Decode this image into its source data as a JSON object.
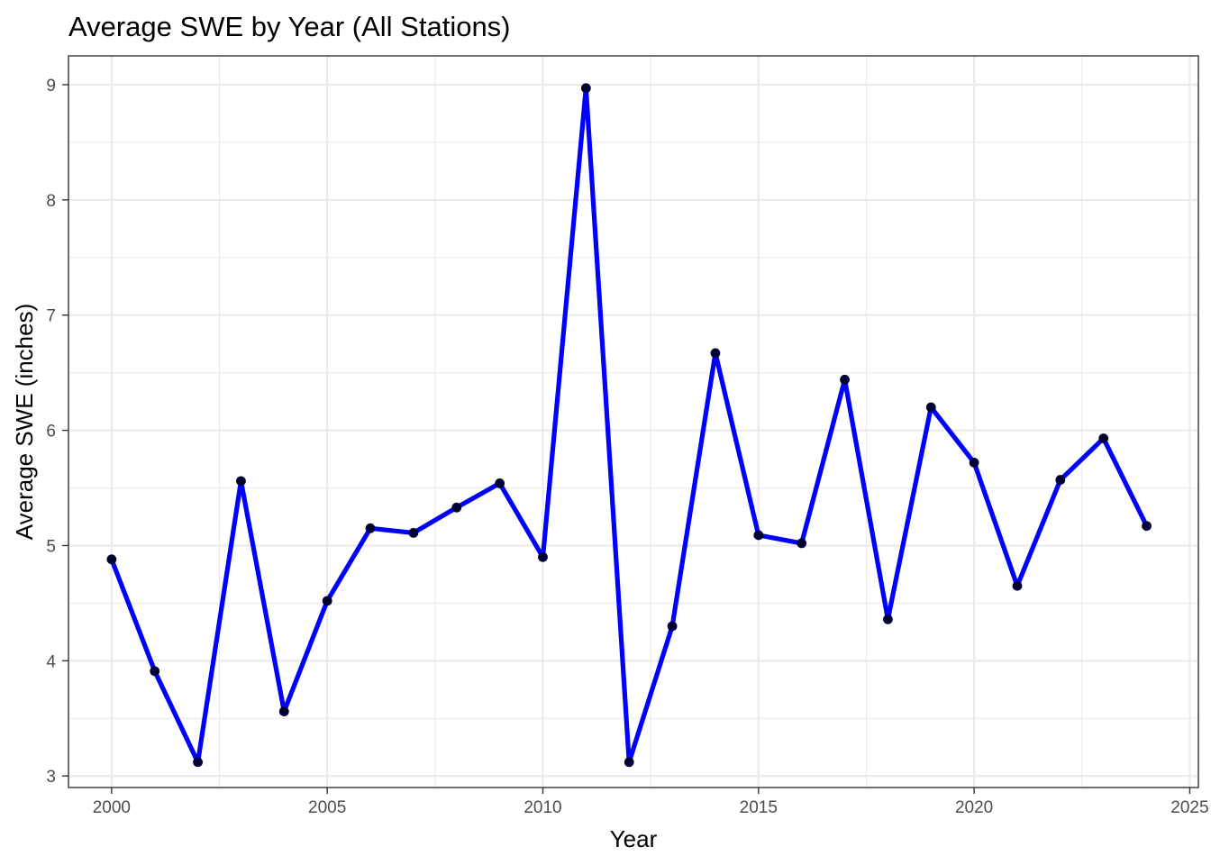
{
  "chart_data": {
    "type": "line",
    "title": "Average SWE by Year (All Stations)",
    "xlabel": "Year",
    "ylabel": "Average SWE (inches)",
    "xlim": [
      1999,
      2025.2
    ],
    "ylim": [
      2.9,
      9.25
    ],
    "x_ticks": [
      2000,
      2005,
      2010,
      2015,
      2020,
      2025
    ],
    "y_ticks": [
      3,
      4,
      5,
      6,
      7,
      8,
      9
    ],
    "grid": true,
    "legend": "none",
    "colors": {
      "line": "#0000ff",
      "point": "#000033",
      "grid": "#ebebeb",
      "panel_border": "#333333"
    },
    "series": [
      {
        "x": [
          2000,
          2001,
          2002,
          2003,
          2004,
          2005,
          2006,
          2007,
          2008,
          2009,
          2010,
          2011,
          2012,
          2013,
          2014,
          2015,
          2016,
          2017,
          2018,
          2019,
          2020,
          2021,
          2022,
          2023,
          2024
        ],
        "y": [
          4.88,
          3.91,
          3.12,
          5.56,
          3.56,
          4.52,
          5.15,
          5.11,
          5.33,
          5.54,
          4.9,
          8.97,
          3.12,
          4.3,
          6.67,
          5.09,
          5.02,
          6.44,
          4.36,
          6.2,
          5.72,
          4.65,
          5.57,
          5.93,
          5.17
        ]
      }
    ]
  }
}
